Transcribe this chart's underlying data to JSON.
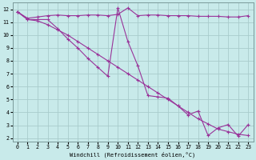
{
  "xlabel": "Windchill (Refroidissement éolien,°C)",
  "bg_color": "#c8eaea",
  "grid_color": "#a8cccc",
  "line_color": "#993399",
  "xlim": [
    -0.5,
    23.5
  ],
  "ylim": [
    1.7,
    12.5
  ],
  "xticks": [
    0,
    1,
    2,
    3,
    4,
    5,
    6,
    7,
    8,
    9,
    10,
    11,
    12,
    13,
    14,
    15,
    16,
    17,
    18,
    19,
    20,
    21,
    22,
    23
  ],
  "yticks": [
    2,
    3,
    4,
    5,
    6,
    7,
    8,
    9,
    10,
    11,
    12
  ],
  "line1_x": [
    0,
    1,
    2,
    3,
    4,
    5,
    6,
    7,
    8,
    9,
    10,
    11,
    12,
    13,
    14,
    15,
    16,
    17,
    18,
    19,
    20,
    21,
    22,
    23
  ],
  "line1_y": [
    11.8,
    11.3,
    11.4,
    11.5,
    11.55,
    11.5,
    11.5,
    11.55,
    11.55,
    11.5,
    11.6,
    12.1,
    11.5,
    11.55,
    11.55,
    11.5,
    11.5,
    11.5,
    11.45,
    11.45,
    11.45,
    11.4,
    11.4,
    11.5
  ],
  "line2_x": [
    0,
    1,
    2,
    3,
    4,
    5,
    6,
    7,
    8,
    9,
    10,
    11,
    12,
    13,
    14,
    15,
    16,
    17,
    18,
    19,
    20,
    21,
    22,
    23
  ],
  "line2_y": [
    11.8,
    11.2,
    11.2,
    11.2,
    10.5,
    9.7,
    9.0,
    8.2,
    7.5,
    6.8,
    12.1,
    9.5,
    7.6,
    5.3,
    5.2,
    5.1,
    4.5,
    3.8,
    4.1,
    2.2,
    2.8,
    3.05,
    2.15,
    3.05
  ],
  "line3_x": [
    0,
    1,
    2,
    3,
    4,
    5,
    6,
    7,
    8,
    9,
    10,
    11,
    12,
    13,
    14,
    15,
    16,
    17,
    18,
    19,
    20,
    21,
    22,
    23
  ],
  "line3_y": [
    11.8,
    11.2,
    11.1,
    10.8,
    10.4,
    10.0,
    9.5,
    9.0,
    8.5,
    8.0,
    7.5,
    7.0,
    6.5,
    6.0,
    5.5,
    5.0,
    4.5,
    4.0,
    3.5,
    3.1,
    2.7,
    2.5,
    2.3,
    2.2
  ]
}
